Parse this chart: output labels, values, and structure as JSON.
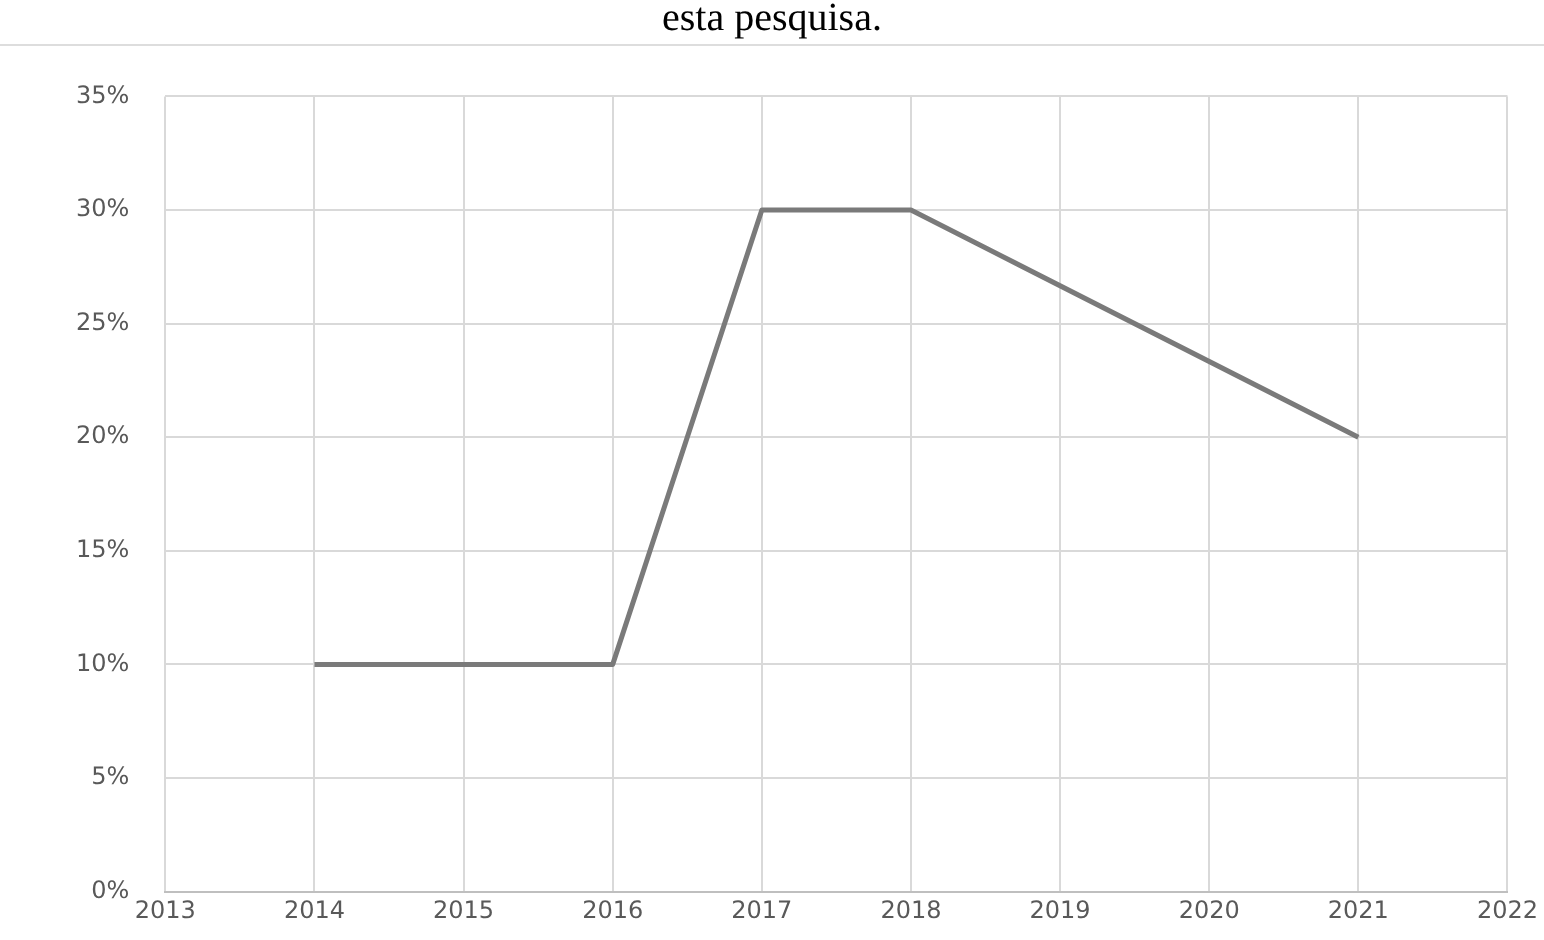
{
  "chart_data": {
    "type": "line",
    "title": "esta pesquisa.",
    "x": [
      2014,
      2015,
      2016,
      2017,
      2018,
      2021
    ],
    "series": [
      {
        "color": "#7a7a7a",
        "values": [
          10,
          10,
          10,
          30,
          30,
          20
        ]
      }
    ],
    "xlim": [
      2013,
      2022
    ],
    "xticks": [
      2013,
      2014,
      2015,
      2016,
      2017,
      2018,
      2019,
      2020,
      2021,
      2022
    ],
    "ylim": [
      0,
      35
    ],
    "yticks": [
      {
        "value": 0,
        "label": "0%"
      },
      {
        "value": 5,
        "label": "5%"
      },
      {
        "value": 10,
        "label": "10%"
      },
      {
        "value": 15,
        "label": "15%"
      },
      {
        "value": 20,
        "label": "20%"
      },
      {
        "value": 25,
        "label": "25%"
      },
      {
        "value": 30,
        "label": "30%"
      },
      {
        "value": 35,
        "label": "35%"
      }
    ],
    "grid": true,
    "legend": false,
    "marker": "none",
    "line_style": "solid"
  }
}
